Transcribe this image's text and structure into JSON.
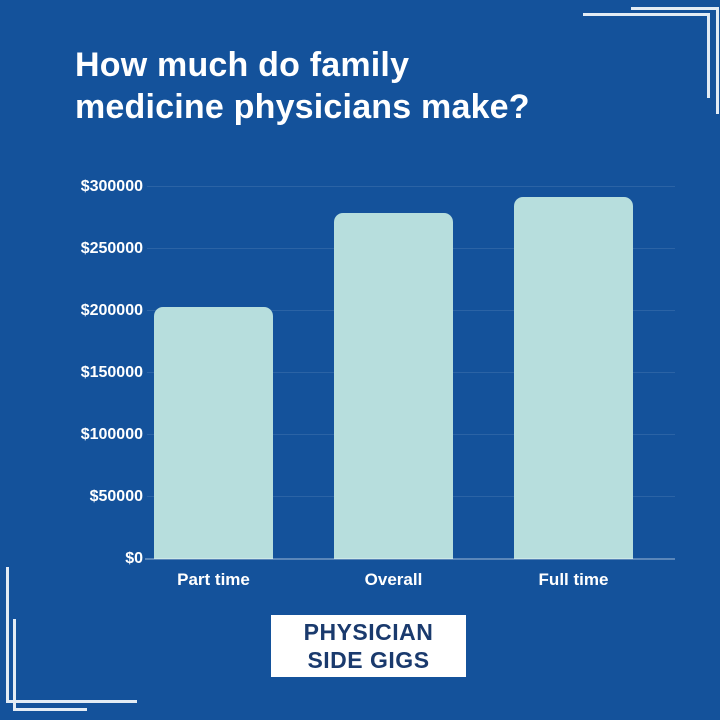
{
  "header": {
    "title_line1": "How much do family",
    "title_line2": "medicine physicians make?"
  },
  "badge": {
    "line1": "PHYSICIAN",
    "line2": "SIDE GIGS"
  },
  "colors": {
    "background": "#14529b",
    "bar": "#b7dedd",
    "text": "#ffffff",
    "badge_background": "#ffffff",
    "badge_text": "#1a3a6d",
    "corner_frame": "#e3ecf5"
  },
  "chart_data": {
    "type": "bar",
    "title": "How much do family medicine physicians make?",
    "categories": [
      "Part time",
      "Overall",
      "Full time"
    ],
    "values": [
      203000,
      279000,
      292000
    ],
    "xlabel": "",
    "ylabel": "",
    "ylim": [
      0,
      300000
    ],
    "ytick_step": 50000,
    "ytick_labels": [
      "$0",
      "$50000",
      "$100000",
      "$150000",
      "$200000",
      "$250000",
      "$300000"
    ],
    "grid": true,
    "legend": false,
    "bar_corner_radius": "rounded-top"
  }
}
